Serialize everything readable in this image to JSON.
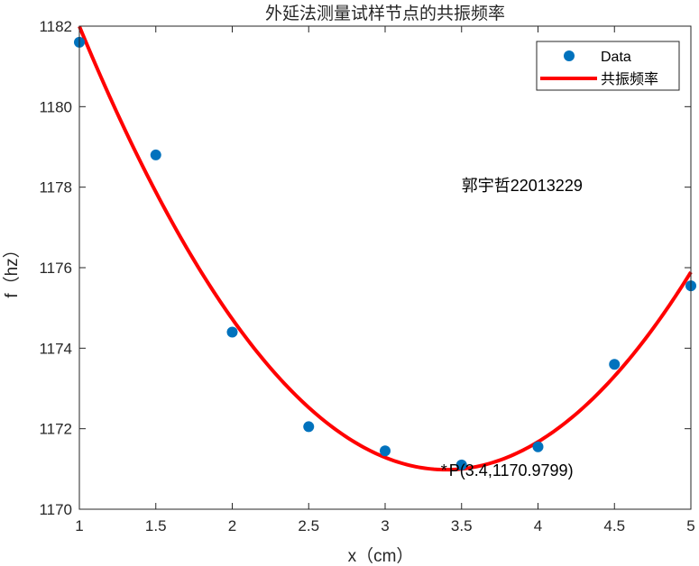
{
  "chart_data": {
    "type": "scatter",
    "title": "外延法测量试样节点的共振频率",
    "xlabel": "x（cm）",
    "ylabel": "f（hz）",
    "xlim": [
      1,
      5
    ],
    "ylim": [
      1170,
      1182
    ],
    "xticks": [
      1,
      1.5,
      2,
      2.5,
      3,
      3.5,
      4,
      4.5,
      5
    ],
    "xtick_labels": [
      "1",
      "1.5",
      "2",
      "2.5",
      "3",
      "3.5",
      "4",
      "4.5",
      "5"
    ],
    "yticks": [
      1170,
      1172,
      1174,
      1176,
      1178,
      1180,
      1182
    ],
    "ytick_labels": [
      "1170",
      "1172",
      "1174",
      "1176",
      "1178",
      "1180",
      "1182"
    ],
    "grid": false,
    "legend_position": "top-right",
    "series": [
      {
        "name": "Data",
        "kind": "scatter",
        "color": "#0072BD",
        "x": [
          1,
          1.5,
          2,
          2.5,
          3,
          3.5,
          4,
          4.5,
          5
        ],
        "y": [
          1181.6,
          1178.8,
          1174.4,
          1172.05,
          1171.45,
          1171.1,
          1171.55,
          1173.6,
          1175.55
        ]
      },
      {
        "name": "共振频率",
        "kind": "line",
        "color": "#FF0000",
        "fit": "quadratic",
        "x_range": [
          1,
          5
        ],
        "vertex": [
          3.4,
          1170.9799
        ],
        "coefficients": [
          1.914,
          -13.01,
          1193.09
        ]
      }
    ],
    "annotations": [
      {
        "text": "郭宇哲22013229",
        "x": 3.5,
        "y": 1177.9
      },
      {
        "marker": "*",
        "text": "P(3.4,1170.9799)",
        "x": 3.4,
        "y": 1170.98
      }
    ]
  }
}
